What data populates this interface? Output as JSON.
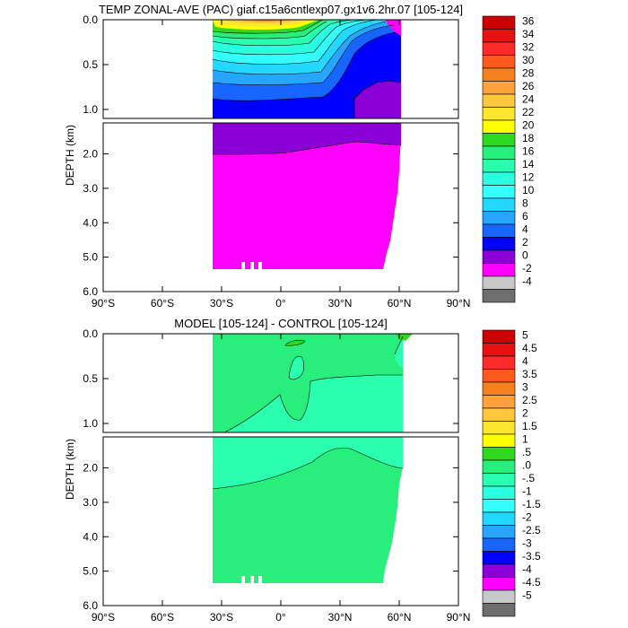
{
  "chart_data": [
    {
      "type": "contour",
      "title": "TEMP ZONAL-AVE (PAC) giaf.c15a6cntlexp07.gx1v6.2hr.07 [105-124]",
      "ylabel": "DEPTH (km)",
      "xlabel": "",
      "x_ticks": [
        "90°S",
        "60°S",
        "30°S",
        "0°",
        "30°N",
        "60°N",
        "90°N"
      ],
      "y_ticks_upper": [
        "0.0",
        "0.5",
        "1.0"
      ],
      "y_ticks_lower": [
        "2.0",
        "3.0",
        "4.0",
        "5.0",
        "6.0"
      ],
      "xlim": [
        -90,
        90
      ],
      "ylim_upper_km": [
        0,
        1.1
      ],
      "ylim_lower_km": [
        1.1,
        6.0
      ],
      "data_extent_lat": [
        -34,
        62
      ],
      "contour_levels": [
        "36",
        "34",
        "32",
        "30",
        "28",
        "26",
        "24",
        "22",
        "20",
        "18",
        "16",
        "14",
        "12",
        "10",
        "8",
        "6",
        "4",
        "2",
        "0",
        "-2",
        "-4"
      ],
      "colors": [
        "#cc0000",
        "#e81010",
        "#ff2a2a",
        "#ff5a1e",
        "#f5821e",
        "#ffa23c",
        "#ffc83c",
        "#ffe62e",
        "#ffff00",
        "#2ed81e",
        "#28ef7c",
        "#2affb0",
        "#2affe0",
        "#33ffff",
        "#23d8ff",
        "#27a6ff",
        "#1766ff",
        "#0000ff",
        "#8c00d8",
        "#ff00ff",
        "#c8c8c8",
        "#6e6e6e"
      ]
    },
    {
      "type": "contour",
      "title": "MODEL [105-124] - CONTROL [105-124]",
      "ylabel": "DEPTH (km)",
      "xlabel": "",
      "x_ticks": [
        "90°S",
        "60°S",
        "30°S",
        "0°",
        "30°N",
        "60°N",
        "90°N"
      ],
      "y_ticks_upper": [
        "0.0",
        "0.5",
        "1.0"
      ],
      "y_ticks_lower": [
        "2.0",
        "3.0",
        "4.0",
        "5.0",
        "6.0"
      ],
      "xlim": [
        -90,
        90
      ],
      "ylim_upper_km": [
        0,
        1.1
      ],
      "ylim_lower_km": [
        1.1,
        6.0
      ],
      "data_extent_lat": [
        -34,
        62
      ],
      "contour_levels": [
        "5",
        "4.5",
        "4",
        "3.5",
        "3",
        "2.5",
        "2",
        "1.5",
        "1",
        ".5",
        ".0",
        "-.5",
        "-1",
        "-1.5",
        "-2",
        "-2.5",
        "-3",
        "-3.5",
        "-4",
        "-4.5",
        "-5"
      ],
      "colors": [
        "#cc0000",
        "#e81010",
        "#ff2a2a",
        "#ff5a1e",
        "#f5821e",
        "#ffa23c",
        "#ffc83c",
        "#ffe62e",
        "#ffff00",
        "#2ed81e",
        "#28ef7c",
        "#2affb0",
        "#2affe0",
        "#33ffff",
        "#23d8ff",
        "#27a6ff",
        "#1766ff",
        "#0000ff",
        "#8c00d8",
        "#ff00ff",
        "#c8c8c8",
        "#6e6e6e"
      ]
    }
  ]
}
